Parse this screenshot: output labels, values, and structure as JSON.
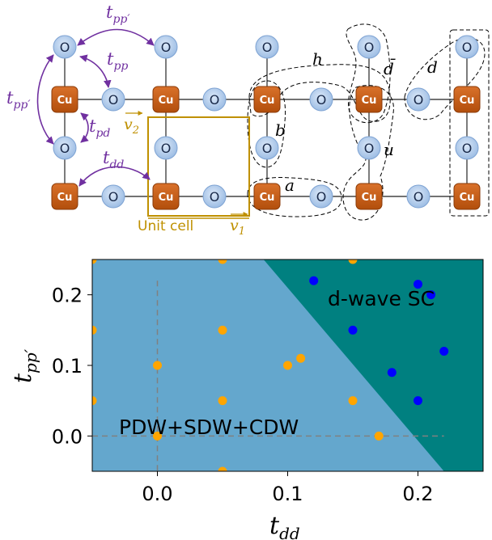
{
  "lattice": {
    "cu_label": "Cu",
    "o_label": "O",
    "hoppings": {
      "t": "t",
      "pp_prime_sub": "pp′",
      "pp_sub": "pp",
      "pd_sub": "pd",
      "dd_sub": "dd"
    },
    "vectors": {
      "v2": "v",
      "v2_sub": "2",
      "v1": "v",
      "v1_sub": "1"
    },
    "unit_cell_label": "Unit cell",
    "cluster_labels": {
      "a": "a",
      "b": "b",
      "h": "h",
      "u": "u",
      "d": "d",
      "dbar": "d̄"
    },
    "colors": {
      "cu_fill": "#c55a11",
      "o_fill": "#b4cef0",
      "hopping": "#7030a0",
      "unit_cell": "#bf9000"
    }
  },
  "chart_data": {
    "type": "scatter",
    "xlabel": "t",
    "xlabel_sub": "dd",
    "ylabel": "t",
    "ylabel_sub": "pp′",
    "xlim": [
      -0.05,
      0.25
    ],
    "ylim": [
      -0.05,
      0.25
    ],
    "xticks": [
      "0.0",
      "0.1",
      "0.2"
    ],
    "yticks": [
      "0.0",
      "0.1",
      "0.2"
    ],
    "region_labels": {
      "sc": "d-wave SC",
      "pdw": "PDW+SDW+CDW"
    },
    "boundary": [
      [
        0.0815,
        0.25
      ],
      [
        0.22,
        -0.05
      ]
    ],
    "colors": {
      "pdw_region": "#64a7cd",
      "sc_region": "#008080",
      "pdw_points": "#ffa500",
      "sc_points": "#0000ff",
      "dashed": "#808080"
    },
    "series": [
      {
        "phase": "PDW",
        "points": [
          [
            -0.05,
            0.25
          ],
          [
            0.05,
            0.25
          ],
          [
            0.15,
            0.25
          ],
          [
            -0.05,
            0.15
          ],
          [
            0.05,
            0.15
          ],
          [
            0.0,
            0.1
          ],
          [
            0.1,
            0.1
          ],
          [
            0.11,
            0.11
          ],
          [
            -0.05,
            0.05
          ],
          [
            0.05,
            0.05
          ],
          [
            0.15,
            0.05
          ],
          [
            0.0,
            0.0
          ],
          [
            0.17,
            0.0
          ],
          [
            0.05,
            -0.05
          ]
        ]
      },
      {
        "phase": "SC",
        "points": [
          [
            0.12,
            0.22
          ],
          [
            0.2,
            0.215
          ],
          [
            0.21,
            0.2
          ],
          [
            0.15,
            0.15
          ],
          [
            0.22,
            0.12
          ],
          [
            0.18,
            0.09
          ],
          [
            0.2,
            0.05
          ]
        ]
      }
    ]
  }
}
